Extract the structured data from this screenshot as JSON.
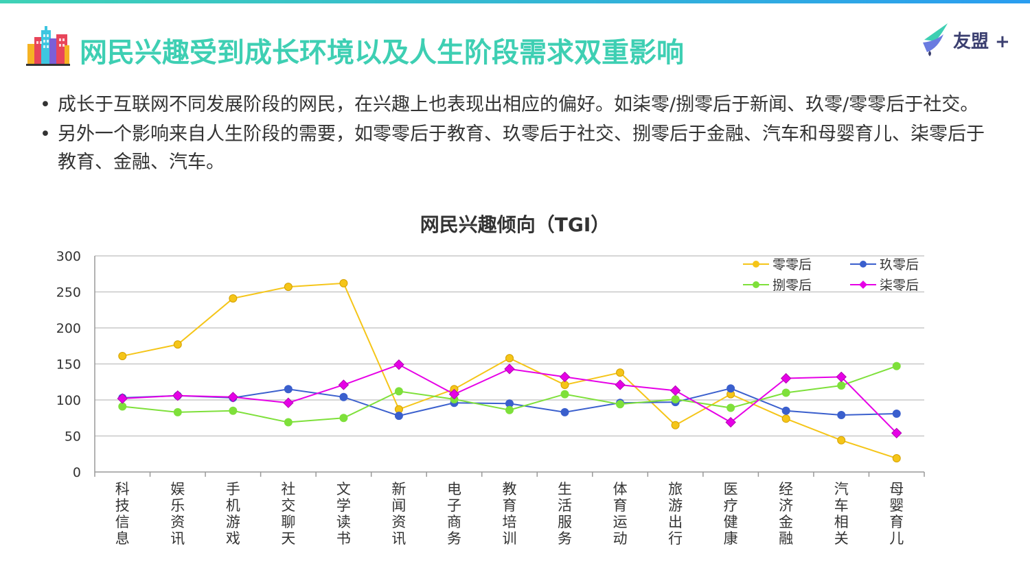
{
  "header": {
    "title": "网民兴趣受到成长环境以及人生阶段需求双重影响",
    "brand": "友盟 +"
  },
  "bullets": [
    {
      "marker": "•",
      "text": "成长于互联网不同发展阶段的网民，在兴趣上也表现出相应的偏好。如柒零/捌零后于新闻、玖零/零零后于社交。"
    },
    {
      "marker": "•",
      "text": "另外一个影响来自人生阶段的需要，如零零后于教育、玖零后于社交、捌零后于金融、汽车和母婴育儿、柒零后于教育、金融、汽车。"
    }
  ],
  "chart_data": {
    "type": "line",
    "title": "网民兴趣倾向（TGI）",
    "ylim": [
      0,
      300
    ],
    "yticks": [
      0,
      50,
      100,
      150,
      200,
      250,
      300
    ],
    "grid": true,
    "legend": "top-right",
    "categories": [
      "科技信息",
      "娱乐资讯",
      "手机游戏",
      "社交聊天",
      "文学读书",
      "新闻资讯",
      "电子商务",
      "教育培训",
      "生活服务",
      "体育运动",
      "旅游出行",
      "医疗健康",
      "经济金融",
      "汽车相关",
      "母婴育儿"
    ],
    "series": [
      {
        "name": "零零后",
        "color": "#f5c518",
        "marker": "circle",
        "values": [
          161,
          177,
          241,
          257,
          262,
          87,
          115,
          158,
          121,
          138,
          65,
          108,
          74,
          44,
          19
        ]
      },
      {
        "name": "玖零后",
        "color": "#3a5fcd",
        "marker": "circle",
        "values": [
          103,
          106,
          103,
          115,
          104,
          78,
          96,
          95,
          83,
          96,
          97,
          116,
          85,
          79,
          81
        ]
      },
      {
        "name": "捌零后",
        "color": "#7ee03a",
        "marker": "circle",
        "values": [
          91,
          83,
          85,
          69,
          75,
          112,
          101,
          86,
          108,
          94,
          101,
          89,
          110,
          120,
          147
        ]
      },
      {
        "name": "柒零后",
        "color": "#e600e6",
        "marker": "diamond",
        "values": [
          102,
          106,
          104,
          96,
          121,
          149,
          108,
          143,
          132,
          121,
          113,
          69,
          130,
          132,
          54
        ]
      }
    ]
  }
}
